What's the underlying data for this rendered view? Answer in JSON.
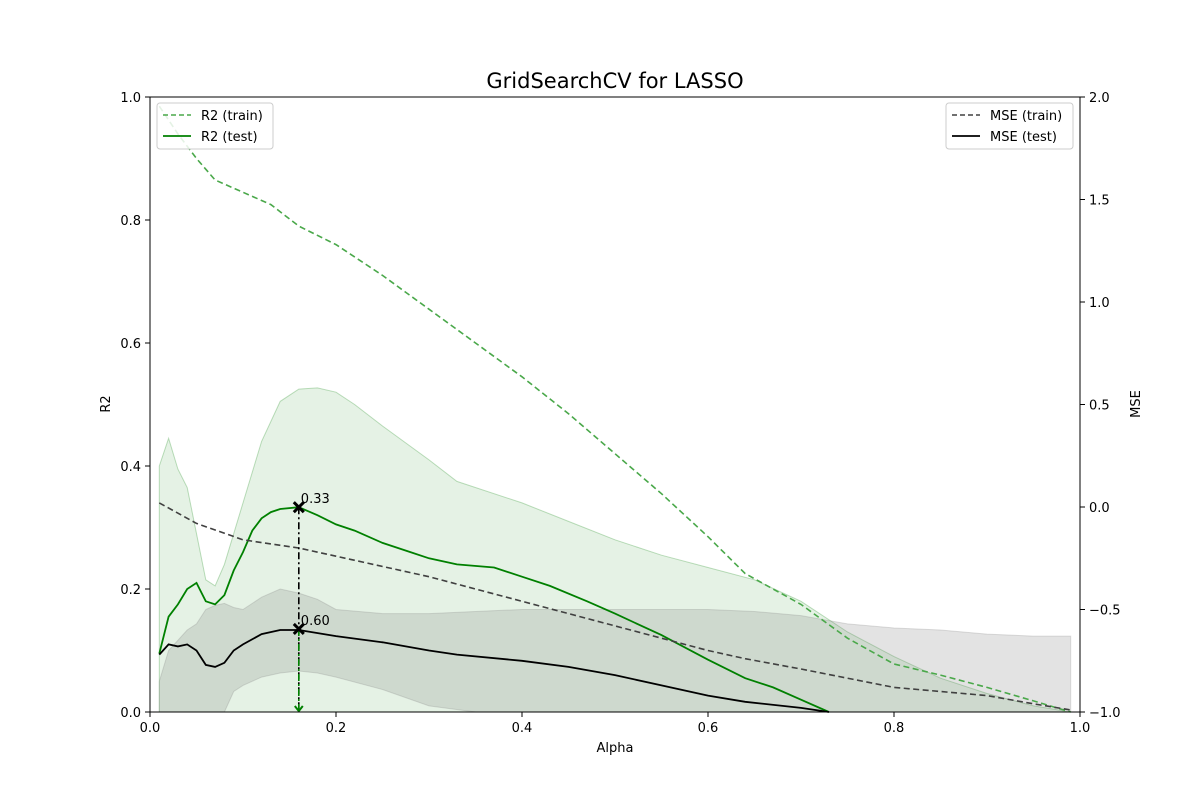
{
  "chart_data": {
    "type": "line",
    "title": "GridSearchCV for LASSO",
    "xlabel": "Alpha",
    "ylabel_left": "R2",
    "ylabel_right": "MSE",
    "xlim": [
      0,
      1
    ],
    "ylim_left": [
      0,
      1
    ],
    "ylim_right": [
      -1,
      2
    ],
    "xticks": [
      "0.0",
      "0.2",
      "0.4",
      "0.6",
      "0.8",
      "1.0"
    ],
    "yticks_left": [
      "0.0",
      "0.2",
      "0.4",
      "0.6",
      "0.8",
      "1.0"
    ],
    "yticks_right": [
      "−1.0",
      "−0.5",
      "0.0",
      "0.5",
      "1.0",
      "1.5",
      "2.0"
    ],
    "grid": false,
    "legend_left_placement": "upper-left",
    "legend_right_placement": "upper-right",
    "best_alpha": 0.16,
    "annotations": [
      {
        "text": "0.33",
        "x": 0.16,
        "y": 0.333,
        "axis": "left"
      },
      {
        "text": "0.60",
        "x": 0.16,
        "y": 0.135,
        "axis": "left"
      }
    ],
    "series": [
      {
        "name": "R2 (train)",
        "axis": "left",
        "style": "dashed",
        "color": "#4aa84a",
        "x": [
          0.01,
          0.03,
          0.05,
          0.07,
          0.1,
          0.13,
          0.16,
          0.2,
          0.25,
          0.3,
          0.35,
          0.4,
          0.45,
          0.5,
          0.55,
          0.6,
          0.64,
          0.7,
          0.75,
          0.8,
          0.85,
          0.9,
          0.95,
          0.99
        ],
        "values": [
          0.985,
          0.94,
          0.9,
          0.865,
          0.845,
          0.825,
          0.79,
          0.76,
          0.71,
          0.655,
          0.6,
          0.545,
          0.485,
          0.42,
          0.355,
          0.285,
          0.225,
          0.175,
          0.12,
          0.078,
          0.06,
          0.04,
          0.018,
          0.0
        ]
      },
      {
        "name": "R2 (test)",
        "axis": "left",
        "style": "solid",
        "color": "#008000",
        "x": [
          0.01,
          0.02,
          0.03,
          0.04,
          0.05,
          0.06,
          0.07,
          0.08,
          0.09,
          0.1,
          0.11,
          0.12,
          0.13,
          0.14,
          0.16,
          0.18,
          0.2,
          0.22,
          0.25,
          0.28,
          0.3,
          0.33,
          0.37,
          0.4,
          0.43,
          0.47,
          0.5,
          0.55,
          0.6,
          0.64,
          0.67,
          0.7,
          0.73
        ],
        "values": [
          0.095,
          0.155,
          0.175,
          0.2,
          0.21,
          0.18,
          0.175,
          0.19,
          0.23,
          0.26,
          0.295,
          0.315,
          0.325,
          0.33,
          0.333,
          0.32,
          0.305,
          0.295,
          0.275,
          0.26,
          0.25,
          0.24,
          0.235,
          0.22,
          0.205,
          0.18,
          0.16,
          0.125,
          0.085,
          0.055,
          0.04,
          0.02,
          0.0
        ]
      },
      {
        "name": "MSE (train)",
        "axis": "right",
        "style": "dashed",
        "color": "#404040",
        "x": [
          0.01,
          0.05,
          0.1,
          0.16,
          0.2,
          0.3,
          0.4,
          0.5,
          0.6,
          0.64,
          0.7,
          0.8,
          0.9,
          0.95,
          0.99
        ],
        "values": [
          0.02,
          -0.08,
          -0.16,
          -0.2,
          -0.24,
          -0.34,
          -0.46,
          -0.58,
          -0.7,
          -0.74,
          -0.79,
          -0.88,
          -0.92,
          -0.96,
          -0.99
        ]
      },
      {
        "name": "MSE (test)",
        "axis": "right",
        "style": "solid",
        "color": "#000000",
        "x": [
          0.01,
          0.02,
          0.03,
          0.04,
          0.05,
          0.06,
          0.07,
          0.08,
          0.09,
          0.1,
          0.12,
          0.14,
          0.16,
          0.2,
          0.25,
          0.3,
          0.33,
          0.4,
          0.45,
          0.5,
          0.55,
          0.6,
          0.64,
          0.7,
          0.73
        ],
        "values": [
          -0.72,
          -0.67,
          -0.68,
          -0.67,
          -0.7,
          -0.77,
          -0.78,
          -0.76,
          -0.7,
          -0.67,
          -0.62,
          -0.6,
          -0.6,
          -0.63,
          -0.66,
          -0.7,
          -0.72,
          -0.75,
          -0.78,
          -0.82,
          -0.87,
          -0.92,
          -0.95,
          -0.98,
          -1.0
        ]
      }
    ],
    "bands": [
      {
        "name": "R2 (test) std band",
        "axis": "left",
        "color": "#008000",
        "opacity": 0.1,
        "x": [
          0.01,
          0.02,
          0.03,
          0.04,
          0.05,
          0.06,
          0.07,
          0.08,
          0.1,
          0.12,
          0.14,
          0.16,
          0.18,
          0.2,
          0.22,
          0.25,
          0.3,
          0.33,
          0.4,
          0.45,
          0.5,
          0.55,
          0.6,
          0.65,
          0.7,
          0.75,
          0.8,
          0.85,
          0.9,
          0.95,
          0.99
        ],
        "upper": [
          0.4,
          0.445,
          0.395,
          0.365,
          0.29,
          0.215,
          0.205,
          0.24,
          0.34,
          0.44,
          0.505,
          0.525,
          0.527,
          0.52,
          0.5,
          0.465,
          0.41,
          0.375,
          0.34,
          0.31,
          0.28,
          0.255,
          0.235,
          0.215,
          0.18,
          0.13,
          0.09,
          0.055,
          0.03,
          0.01,
          0.0
        ],
        "lower": [
          0.0,
          0.0,
          0.0,
          0.0,
          0.0,
          0.0,
          0.0,
          0.0,
          0.0,
          0.0,
          0.0,
          0.0,
          0.0,
          0.0,
          0.0,
          0.0,
          0.0,
          0.0,
          0.0,
          0.0,
          0.0,
          0.0,
          0.0,
          0.0,
          0.0,
          0.0,
          0.0,
          0.0,
          0.0,
          0.0,
          0.0
        ]
      },
      {
        "name": "MSE (test) std band",
        "axis": "right",
        "color": "#808080",
        "opacity": 0.22,
        "x": [
          0.01,
          0.02,
          0.03,
          0.04,
          0.05,
          0.06,
          0.07,
          0.08,
          0.09,
          0.1,
          0.12,
          0.14,
          0.16,
          0.18,
          0.2,
          0.25,
          0.3,
          0.35,
          0.4,
          0.5,
          0.6,
          0.65,
          0.7,
          0.75,
          0.8,
          0.85,
          0.9,
          0.95,
          0.99
        ],
        "upper": [
          -0.85,
          -0.7,
          -0.65,
          -0.6,
          -0.57,
          -0.5,
          -0.48,
          -0.47,
          -0.49,
          -0.5,
          -0.44,
          -0.4,
          -0.42,
          -0.45,
          -0.5,
          -0.52,
          -0.52,
          -0.51,
          -0.5,
          -0.5,
          -0.5,
          -0.51,
          -0.53,
          -0.57,
          -0.59,
          -0.6,
          -0.62,
          -0.63,
          -0.63
        ],
        "lower": [
          -1.0,
          -1.0,
          -1.0,
          -1.0,
          -1.0,
          -1.0,
          -1.0,
          -1.0,
          -0.9,
          -0.87,
          -0.83,
          -0.81,
          -0.8,
          -0.81,
          -0.83,
          -0.89,
          -0.97,
          -1.0,
          -1.0,
          -1.0,
          -1.0,
          -1.0,
          -1.0,
          -1.0,
          -1.0,
          -1.0,
          -1.0,
          -1.0,
          -1.0
        ]
      }
    ]
  }
}
